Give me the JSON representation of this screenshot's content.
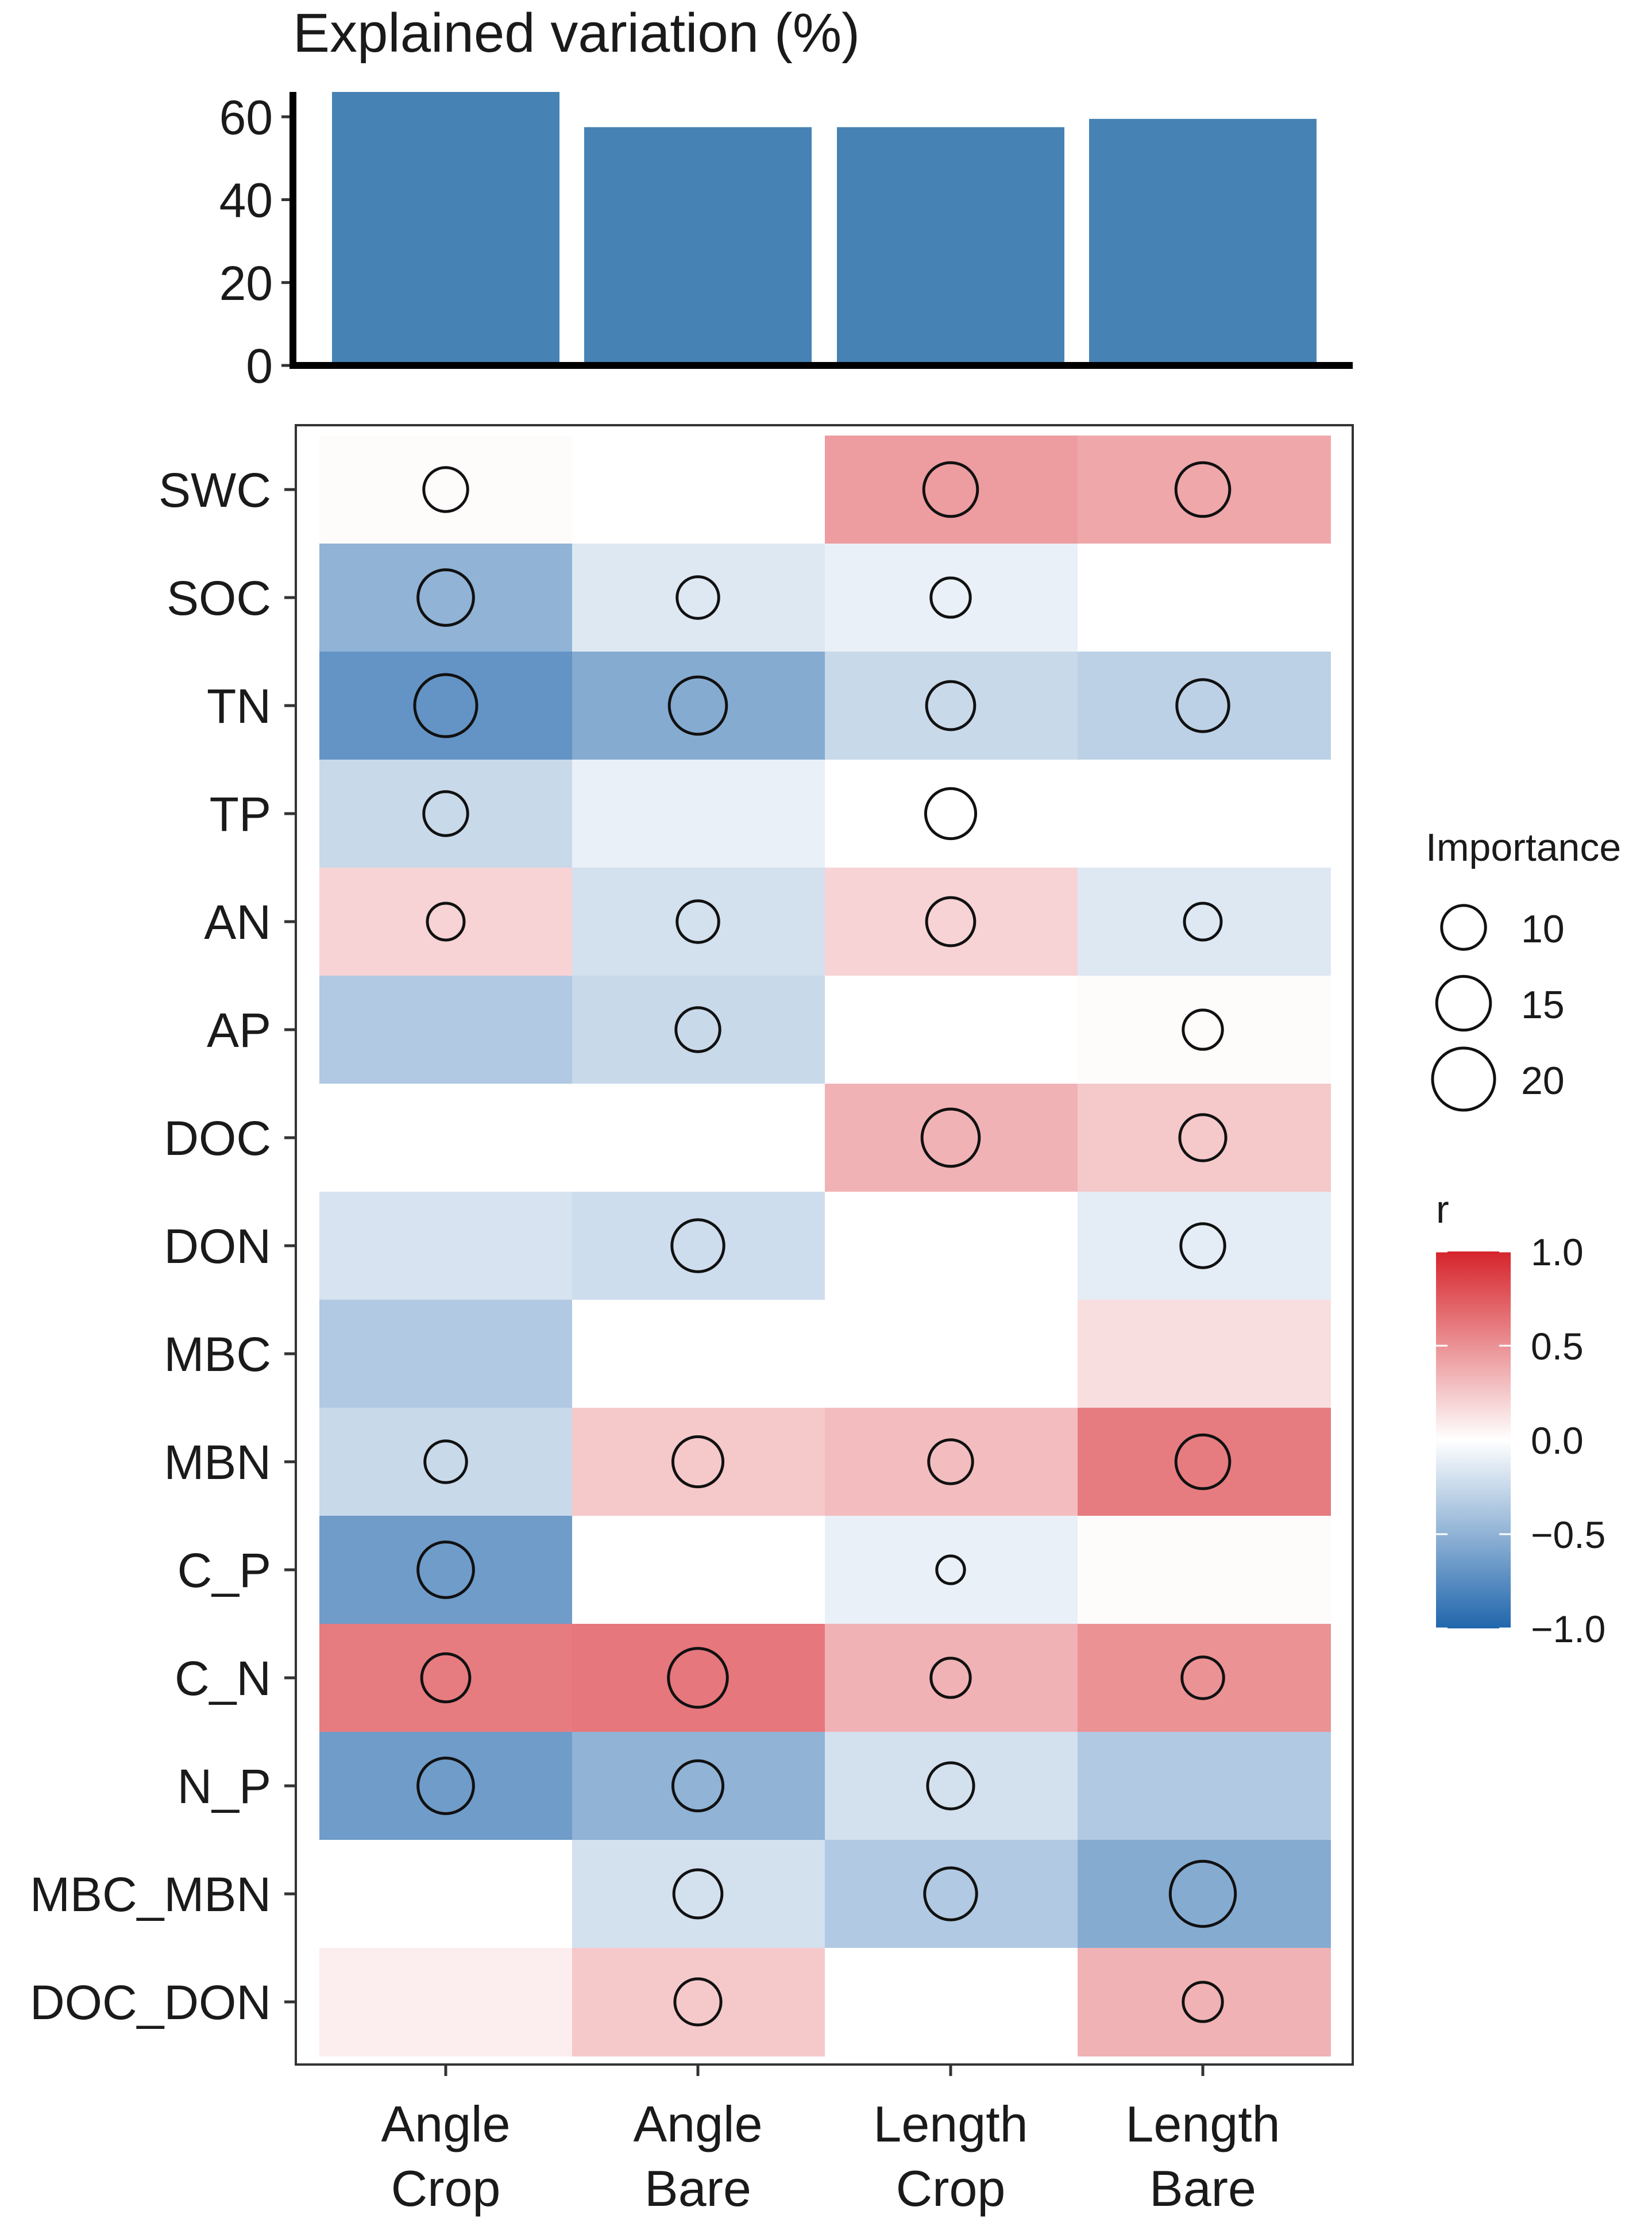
{
  "chart_data": [
    {
      "type": "bar",
      "title": "Explained variation (%)",
      "categories": [
        "Angle Crop",
        "Angle Bare",
        "Length Crop",
        "Length Bare"
      ],
      "values": [
        66,
        57.5,
        57.5,
        59.5
      ],
      "ylim": [
        0,
        66
      ],
      "yticks": [
        "0",
        "20",
        "40",
        "60"
      ],
      "bar_color": "#4682B4"
    },
    {
      "type": "heatmap",
      "xlabels": [
        [
          "Angle",
          "Crop"
        ],
        [
          "Angle",
          "Bare"
        ],
        [
          "Length",
          "Crop"
        ],
        [
          "Length",
          "Bare"
        ]
      ],
      "rows": [
        "SWC",
        "SOC",
        "TN",
        "TP",
        "AN",
        "AP",
        "DOC",
        "DON",
        "MBC",
        "MBN",
        "C_P",
        "C_N",
        "N_P",
        "MBC_MBN",
        "DOC_DON"
      ],
      "r": [
        [
          0.02,
          0.0,
          0.45,
          0.4
        ],
        [
          -0.5,
          -0.15,
          -0.1,
          0.0
        ],
        [
          -0.7,
          -0.55,
          -0.25,
          -0.3
        ],
        [
          -0.25,
          -0.1,
          0.0,
          0.0
        ],
        [
          0.2,
          -0.2,
          0.2,
          -0.15
        ],
        [
          -0.35,
          -0.25,
          0.0,
          0.02
        ],
        [
          0.0,
          0.0,
          0.35,
          0.25
        ],
        [
          -0.18,
          -0.22,
          0.0,
          -0.12
        ],
        [
          -0.35,
          0.0,
          0.0,
          0.15
        ],
        [
          -0.25,
          0.25,
          0.3,
          0.6
        ],
        [
          -0.65,
          0.0,
          -0.1,
          0.02
        ],
        [
          0.6,
          0.62,
          0.35,
          0.5
        ],
        [
          -0.65,
          -0.5,
          -0.2,
          -0.35
        ],
        [
          0.0,
          -0.2,
          -0.35,
          -0.55
        ],
        [
          0.08,
          0.25,
          0.0,
          0.35
        ]
      ],
      "importance": [
        [
          10,
          null,
          15,
          15
        ],
        [
          16,
          9,
          8,
          null
        ],
        [
          20,
          17,
          12,
          14
        ],
        [
          10,
          null,
          13,
          null
        ],
        [
          7,
          9,
          12,
          7
        ],
        [
          null,
          10,
          null,
          8
        ],
        [
          null,
          null,
          17,
          11
        ],
        [
          null,
          14,
          null,
          10
        ],
        [
          null,
          null,
          null,
          null
        ],
        [
          9,
          13,
          10,
          15
        ],
        [
          16,
          null,
          4,
          null
        ],
        [
          12,
          18,
          8,
          9
        ],
        [
          16,
          13,
          11,
          null
        ],
        [
          null,
          12,
          14,
          22
        ],
        [
          null,
          11,
          null,
          8
        ]
      ],
      "legend_importance": {
        "title": "Importance",
        "values": [
          10,
          15,
          20
        ],
        "labels": [
          "10",
          "15",
          "20"
        ]
      },
      "legend_color": {
        "title": "r",
        "range": [
          -1.0,
          1.0
        ],
        "tick_values": [
          1.0,
          0.5,
          0.0,
          -0.5,
          -1.0
        ],
        "tick_labels": [
          "1.0",
          "0.5",
          "0.0",
          "−0.5",
          "−1.0"
        ],
        "low_color": "#2166AC",
        "mid_color": "#FFFFFF",
        "high_color": "#D6242B"
      }
    }
  ]
}
